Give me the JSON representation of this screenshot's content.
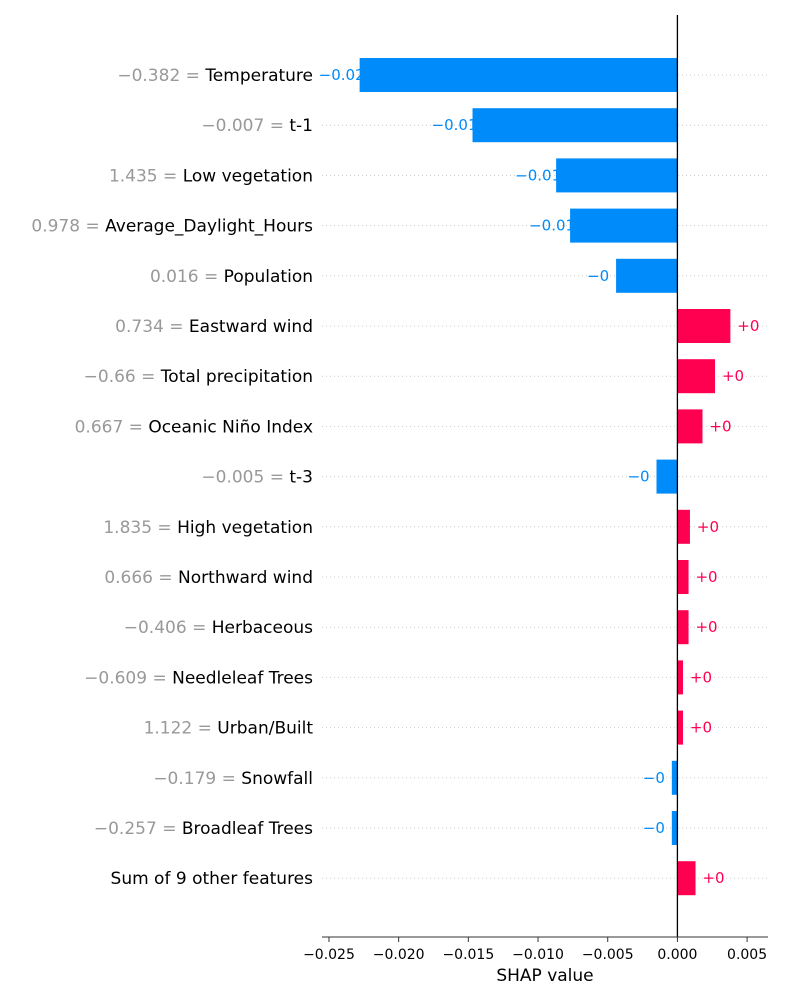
{
  "chart_data": {
    "type": "bar",
    "orientation": "horizontal",
    "xlabel": "SHAP value",
    "xlim": [
      -0.0255,
      0.0065
    ],
    "xticks": [
      -0.025,
      -0.02,
      -0.015,
      -0.01,
      -0.005,
      0.0,
      0.005
    ],
    "xtick_labels": [
      "−0.025",
      "−0.020",
      "−0.015",
      "−0.010",
      "−0.005",
      "0.000",
      "0.005"
    ],
    "grid": "horizontal dotted row guides",
    "colors": {
      "negative": "#008bfb",
      "positive": "#ff0051",
      "feature_value": "#999999",
      "feature_name": "#000000",
      "axis": "#333333"
    },
    "features": [
      {
        "value_text": "−0.382 = ",
        "name": "Temperature",
        "shap": -0.0228,
        "label": "−0.02"
      },
      {
        "value_text": "−0.007 = ",
        "name": "t-1",
        "shap": -0.0147,
        "label": "−0.01"
      },
      {
        "value_text": "1.435 = ",
        "name": "Low vegetation",
        "shap": -0.0087,
        "label": "−0.01"
      },
      {
        "value_text": "0.978 = ",
        "name": "Average_Daylight_Hours",
        "shap": -0.0077,
        "label": "−0.01"
      },
      {
        "value_text": "0.016 = ",
        "name": "Population",
        "shap": -0.0044,
        "label": "−0"
      },
      {
        "value_text": "0.734 = ",
        "name": "Eastward wind",
        "shap": 0.0038,
        "label": "+0"
      },
      {
        "value_text": "−0.66 = ",
        "name": "Total precipitation",
        "shap": 0.0027,
        "label": "+0"
      },
      {
        "value_text": "0.667 = ",
        "name": "Oceanic Niño Index",
        "shap": 0.0018,
        "label": "+0"
      },
      {
        "value_text": "−0.005 = ",
        "name": "t-3",
        "shap": -0.0015,
        "label": "−0"
      },
      {
        "value_text": "1.835 = ",
        "name": "High vegetation",
        "shap": 0.0009,
        "label": "+0"
      },
      {
        "value_text": "0.666 = ",
        "name": "Northward wind",
        "shap": 0.0008,
        "label": "+0"
      },
      {
        "value_text": "−0.406 = ",
        "name": "Herbaceous",
        "shap": 0.0008,
        "label": "+0"
      },
      {
        "value_text": "−0.609 = ",
        "name": "Needleleaf Trees",
        "shap": 0.0004,
        "label": "+0"
      },
      {
        "value_text": "1.122 = ",
        "name": "Urban/Built",
        "shap": 0.0004,
        "label": "+0"
      },
      {
        "value_text": "−0.179 = ",
        "name": "Snowfall",
        "shap": -0.0004,
        "label": "−0"
      },
      {
        "value_text": "−0.257 = ",
        "name": "Broadleaf Trees",
        "shap": -0.0004,
        "label": "−0"
      },
      {
        "value_text": "",
        "name": "Sum of 9 other features",
        "shap": 0.0013,
        "label": "+0"
      }
    ]
  }
}
